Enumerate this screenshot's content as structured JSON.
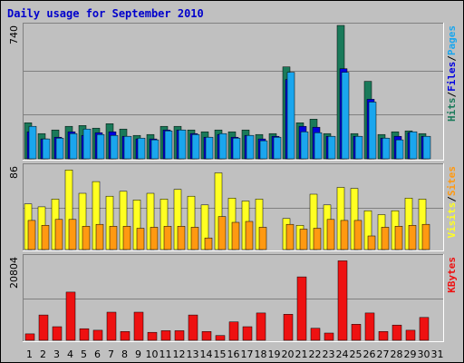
{
  "chart_data": {
    "type": "bar",
    "title": "Daily usage for September 2010",
    "days": [
      "1",
      "2",
      "3",
      "4",
      "5",
      "6",
      "7",
      "8",
      "9",
      "10",
      "11",
      "12",
      "13",
      "14",
      "15",
      "16",
      "17",
      "18",
      "19",
      "20",
      "21",
      "22",
      "23",
      "24",
      "25",
      "26",
      "27",
      "28",
      "29",
      "30",
      "31"
    ],
    "weekend_days": [
      "4",
      "5",
      "11",
      "12",
      "18",
      "19",
      "25",
      "26"
    ],
    "colors": {
      "background": "#c0c0c0",
      "plot": "#c0c0c0",
      "frame": "#808080",
      "title": "#0000cc",
      "weekday_label": "#000000",
      "weekend_label": "#2e8b57",
      "hits": "#1a7a5a",
      "files": "#0000e0",
      "pages": "#1aa6ee",
      "visits": "#ffff22",
      "sites": "#ff9911",
      "kbytes": "#ee1111"
    },
    "panels": [
      {
        "id": "hits-files-pages",
        "ymax_label": "740",
        "ylim": [
          0,
          740
        ],
        "legend": [
          {
            "text": "Hits",
            "color": "#1a7a5a"
          },
          {
            "text": "/",
            "color": "#000000"
          },
          {
            "text": "Files",
            "color": "#0000e0"
          },
          {
            "text": "/",
            "color": "#000000"
          },
          {
            "text": "Pages",
            "color": "#1aa6ee"
          }
        ],
        "series": [
          {
            "name": "Hits",
            "color": "#1a7a5a",
            "values": [
              200,
              140,
              160,
              180,
              185,
              170,
              195,
              165,
              130,
              135,
              180,
              180,
              160,
              150,
              160,
              150,
              160,
              135,
              140,
              510,
              200,
              220,
              140,
              740,
              140,
              430,
              135,
              150,
              155,
              140,
              0
            ]
          },
          {
            "name": "Files",
            "color": "#0000e0",
            "values": [
              150,
              110,
              120,
              150,
              130,
              145,
              150,
              125,
              110,
              110,
              160,
              160,
              140,
              120,
              135,
              120,
              130,
              110,
              125,
              440,
              180,
              175,
              125,
              500,
              125,
              330,
              115,
              125,
              145,
              125,
              0
            ]
          },
          {
            "name": "Pages",
            "color": "#1aa6ee",
            "values": [
              180,
              110,
              115,
              140,
              165,
              135,
              130,
              125,
              115,
              105,
              155,
              160,
              135,
              120,
              140,
              115,
              130,
              100,
              120,
              480,
              150,
              145,
              125,
              480,
              125,
              315,
              115,
              105,
              150,
              125,
              0
            ]
          }
        ]
      },
      {
        "id": "visits-sites",
        "ymax_label": "86",
        "ylim": [
          0,
          86
        ],
        "legend": [
          {
            "text": "Visits",
            "color": "#ffff22"
          },
          {
            "text": "/",
            "color": "#000000"
          },
          {
            "text": "Sites",
            "color": "#ff9911"
          }
        ],
        "series": [
          {
            "name": "Visits",
            "color": "#ffff22",
            "values": [
              47,
              44,
              52,
              82,
              58,
              70,
              55,
              60,
              51,
              58,
              52,
              62,
              55,
              46,
              79,
              53,
              50,
              52,
              0,
              32,
              25,
              57,
              46,
              64,
              63,
              40,
              36,
              40,
              53,
              52,
              0
            ]
          },
          {
            "name": "Sites",
            "color": "#ff9911",
            "values": [
              30,
              25,
              31,
              31,
              24,
              26,
              24,
              24,
              22,
              23,
              24,
              24,
              23,
              12,
              34,
              28,
              29,
              23,
              0,
              26,
              21,
              22,
              31,
              30,
              30,
              14,
              23,
              24,
              25,
              26,
              0
            ]
          }
        ]
      },
      {
        "id": "kbytes",
        "ymax_label": "20804",
        "ylim": [
          0,
          20804
        ],
        "legend": [
          {
            "text": "KBytes",
            "color": "#ee1111"
          }
        ],
        "series": [
          {
            "name": "KBytes",
            "color": "#ee1111",
            "values": [
              1600,
              6300,
              3400,
              12000,
              2900,
              2500,
              7000,
              2200,
              7000,
              2000,
              2400,
              2400,
              6300,
              2200,
              1200,
              4600,
              3400,
              6800,
              0,
              6500,
              15800,
              3000,
              1800,
              19800,
              4000,
              6800,
              2200,
              3800,
              2500,
              5700,
              0
            ]
          }
        ]
      }
    ]
  }
}
